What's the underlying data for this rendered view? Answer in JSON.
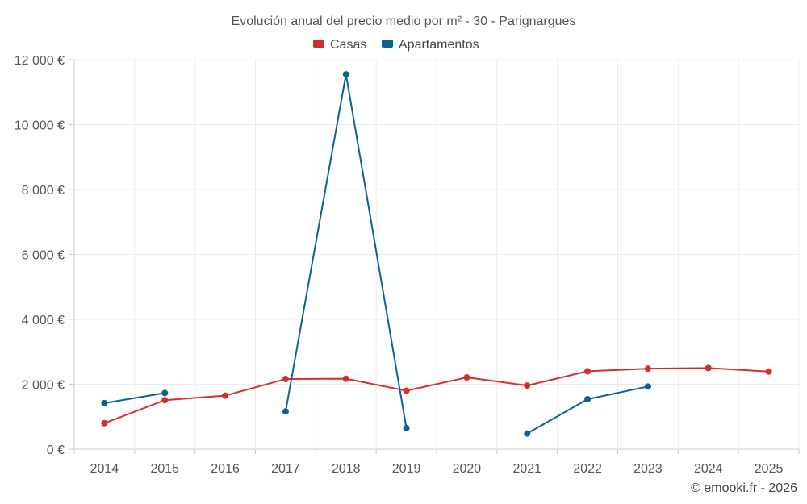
{
  "chart_data": {
    "type": "line",
    "title": "Evolución anual del precio medio por m² - 30 - Parignargues",
    "x": [
      "2014",
      "2015",
      "2016",
      "2017",
      "2018",
      "2019",
      "2020",
      "2021",
      "2022",
      "2023",
      "2024",
      "2025"
    ],
    "ylim": [
      0,
      12000
    ],
    "yticks": [
      0,
      2000,
      4000,
      6000,
      8000,
      10000,
      12000
    ],
    "ytick_labels": [
      "0 €",
      "2 000 €",
      "4 000 €",
      "6 000 €",
      "8 000 €",
      "10 000 €",
      "12 000 €"
    ],
    "grid": true,
    "legend_position": "top-center",
    "series": [
      {
        "name": "Casas",
        "color": "#d32f2f",
        "values": [
          800,
          1510,
          1650,
          2160,
          2170,
          1800,
          2210,
          1960,
          2400,
          2480,
          2500,
          2390
        ]
      },
      {
        "name": "Apartamentos",
        "color": "#0c6291",
        "values": [
          1420,
          1730,
          null,
          1160,
          11550,
          650,
          null,
          480,
          1540,
          1930,
          null,
          null
        ]
      }
    ]
  },
  "credit": "© emooki.fr - 2026"
}
